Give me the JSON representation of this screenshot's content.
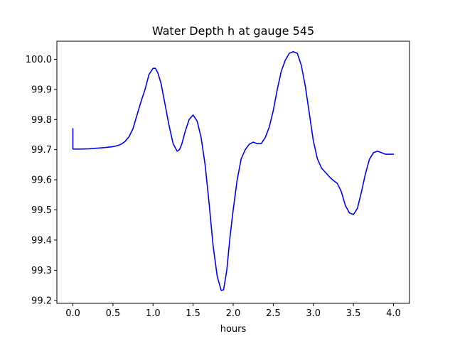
{
  "chart_data": {
    "type": "line",
    "title": "Water Depth h at gauge 545",
    "xlabel": "hours",
    "ylabel": "",
    "xlim": [
      -0.2,
      4.2
    ],
    "ylim": [
      99.19,
      100.06
    ],
    "x_ticks": [
      0.0,
      0.5,
      1.0,
      1.5,
      2.0,
      2.5,
      3.0,
      3.5,
      4.0
    ],
    "x_tick_labels": [
      "0.0",
      "0.5",
      "1.0",
      "1.5",
      "2.0",
      "2.5",
      "3.0",
      "3.5",
      "4.0"
    ],
    "y_ticks": [
      99.2,
      99.3,
      99.4,
      99.5,
      99.6,
      99.7,
      99.8,
      99.9,
      100.0
    ],
    "y_tick_labels": [
      "99.2",
      "99.3",
      "99.4",
      "99.5",
      "99.6",
      "99.7",
      "99.8",
      "99.9",
      "100.0"
    ],
    "grid": false,
    "legend": "none",
    "series": [
      {
        "color": "#0000ff",
        "x": [
          0.0,
          0.0,
          0.1,
          0.2,
          0.3,
          0.4,
          0.5,
          0.55,
          0.6,
          0.65,
          0.7,
          0.75,
          0.8,
          0.85,
          0.9,
          0.95,
          1.0,
          1.03,
          1.06,
          1.1,
          1.15,
          1.2,
          1.25,
          1.3,
          1.33,
          1.36,
          1.4,
          1.45,
          1.5,
          1.55,
          1.6,
          1.65,
          1.7,
          1.75,
          1.8,
          1.85,
          1.88,
          1.92,
          1.96,
          2.0,
          2.05,
          2.1,
          2.15,
          2.2,
          2.25,
          2.3,
          2.35,
          2.4,
          2.45,
          2.5,
          2.55,
          2.6,
          2.65,
          2.7,
          2.75,
          2.8,
          2.85,
          2.9,
          2.95,
          3.0,
          3.05,
          3.1,
          3.15,
          3.2,
          3.25,
          3.3,
          3.35,
          3.4,
          3.45,
          3.5,
          3.55,
          3.6,
          3.65,
          3.7,
          3.75,
          3.8,
          3.85,
          3.9,
          3.95,
          4.0
        ],
        "y": [
          99.77,
          99.702,
          99.702,
          99.703,
          99.705,
          99.707,
          99.71,
          99.713,
          99.718,
          99.727,
          99.743,
          99.77,
          99.815,
          99.86,
          99.9,
          99.95,
          99.97,
          99.97,
          99.955,
          99.92,
          99.85,
          99.78,
          99.72,
          99.695,
          99.7,
          99.72,
          99.76,
          99.8,
          99.815,
          99.795,
          99.74,
          99.65,
          99.52,
          99.38,
          99.28,
          99.233,
          99.235,
          99.3,
          99.41,
          99.5,
          99.6,
          99.67,
          99.7,
          99.718,
          99.725,
          99.72,
          99.72,
          99.74,
          99.775,
          99.83,
          99.9,
          99.96,
          99.997,
          100.02,
          100.025,
          100.02,
          99.98,
          99.91,
          99.82,
          99.73,
          99.67,
          99.64,
          99.625,
          99.61,
          99.598,
          99.588,
          99.56,
          99.515,
          99.49,
          99.485,
          99.505,
          99.56,
          99.62,
          99.668,
          99.69,
          99.695,
          99.69,
          99.685,
          99.685,
          99.685
        ]
      }
    ]
  }
}
